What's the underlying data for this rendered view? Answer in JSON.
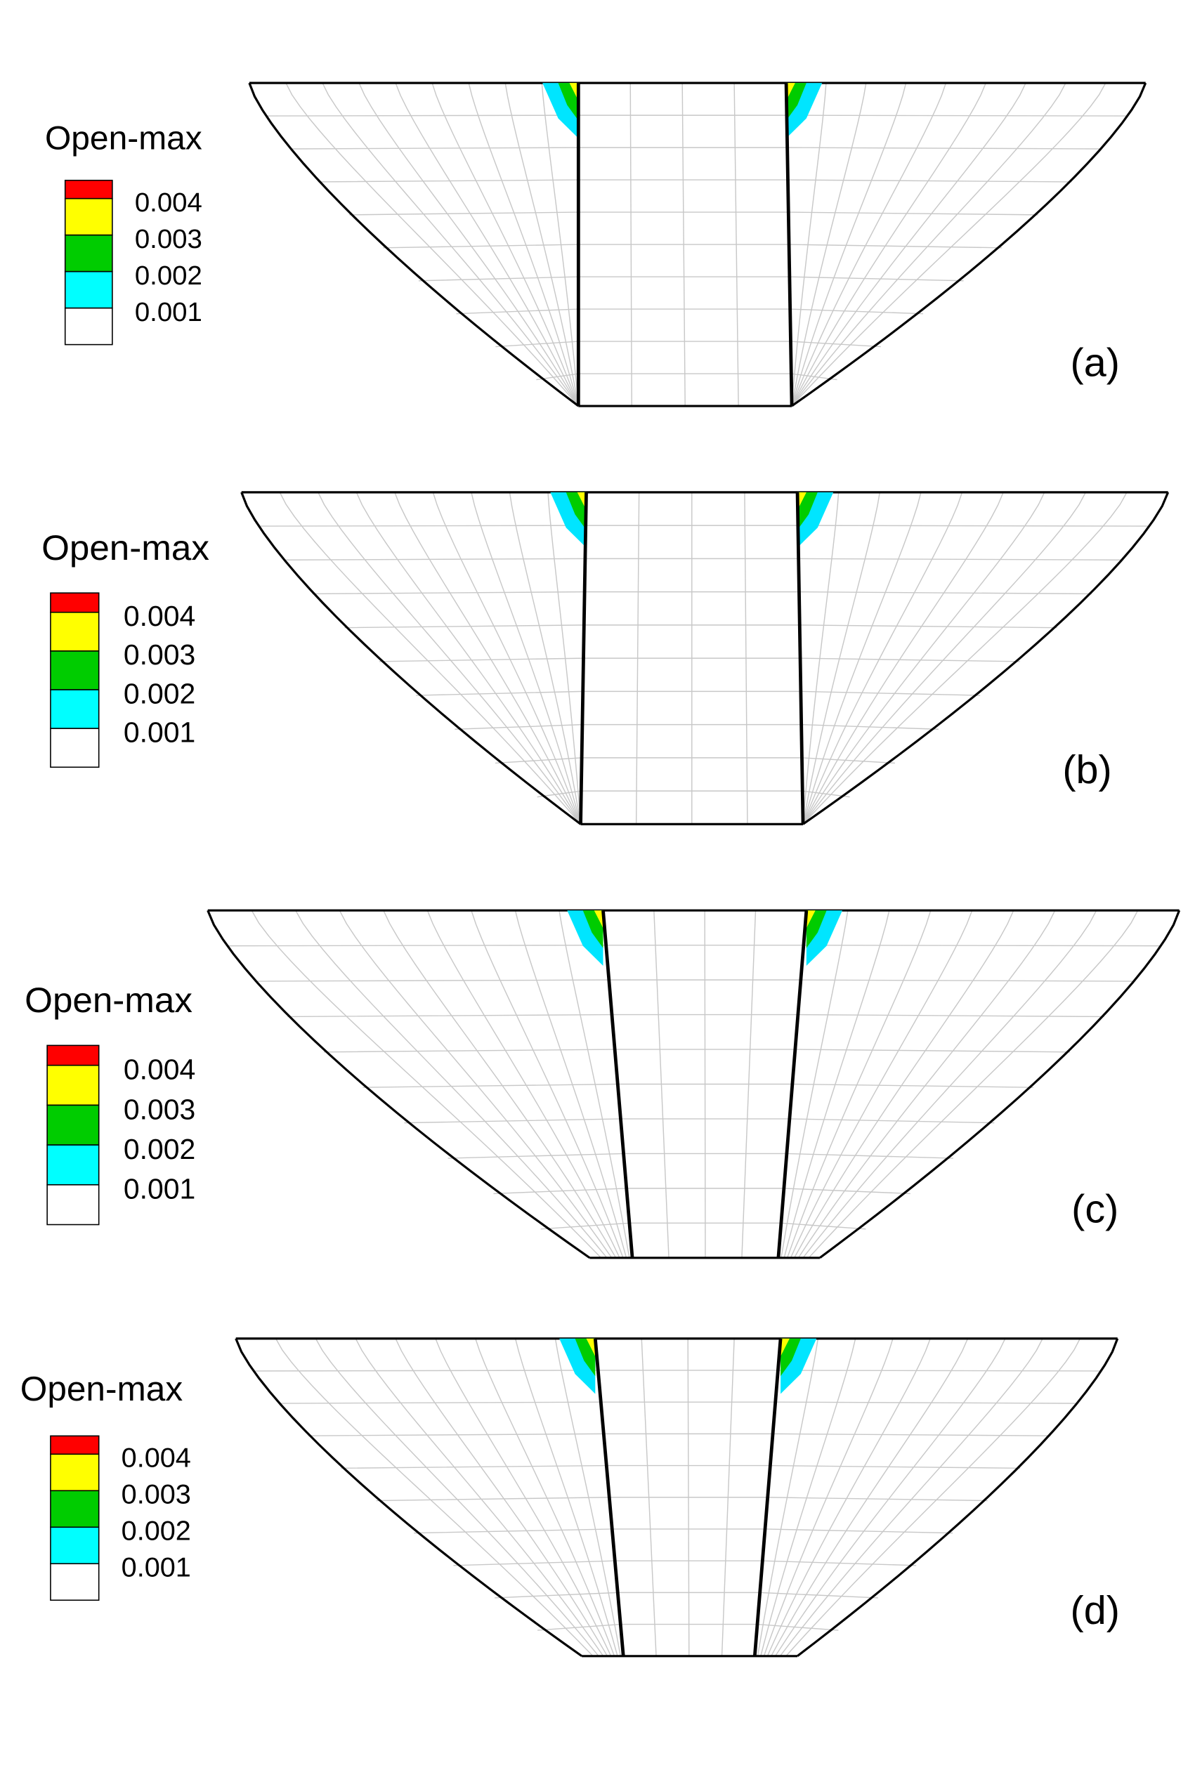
{
  "panels": [
    {
      "label": "(a)",
      "legend_title": "Open-max",
      "legend_labels": [
        "0.004",
        "0.003",
        "0.002",
        "0.001"
      ]
    },
    {
      "label": "(b)",
      "legend_title": "Open-max",
      "legend_labels": [
        "0.004",
        "0.003",
        "0.002",
        "0.001"
      ]
    },
    {
      "label": "(c)",
      "legend_title": "Open-max",
      "legend_labels": [
        "0.004",
        "0.003",
        "0.002",
        "0.001"
      ]
    },
    {
      "label": "(d)",
      "legend_title": "Open-max",
      "legend_labels": [
        "0.004",
        "0.003",
        "0.002",
        "0.001"
      ]
    }
  ]
}
